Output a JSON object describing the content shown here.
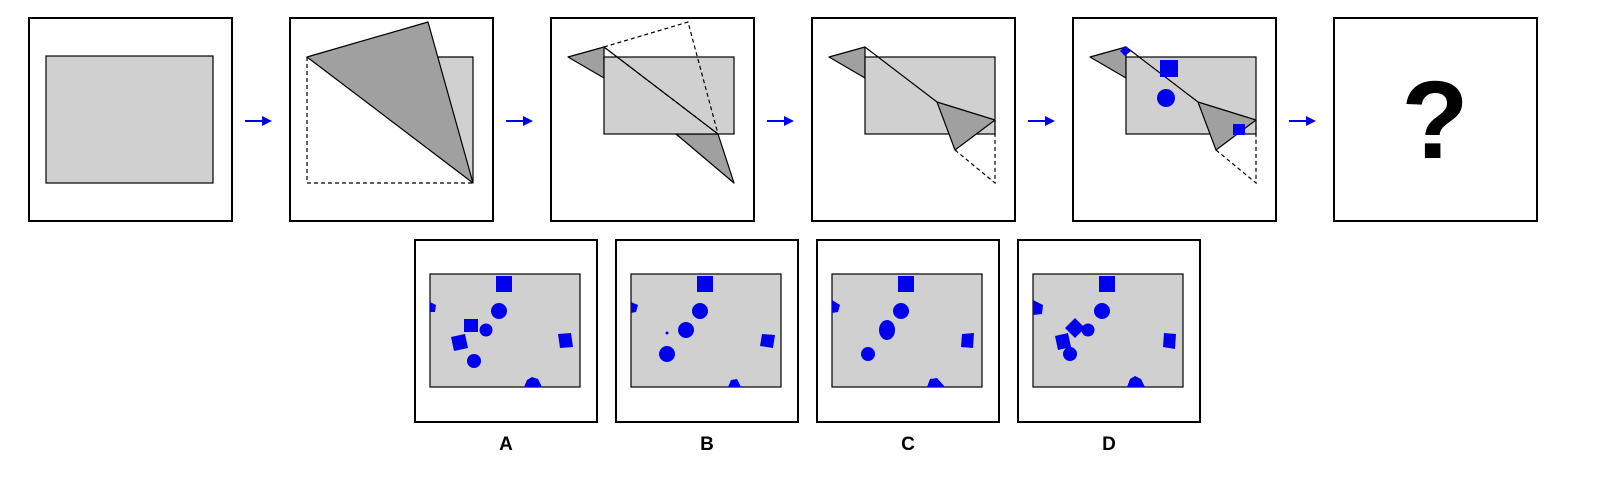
{
  "question_mark": "?",
  "options": [
    {
      "label": "A"
    },
    {
      "label": "B"
    },
    {
      "label": "C"
    },
    {
      "label": "D"
    }
  ],
  "colors": {
    "paper": "#d0d0d0",
    "folded_flap": "#a0a0a0",
    "punch_marks": "#0000ee",
    "arrows": "#0000ee",
    "frame": "#000000"
  },
  "icons": {
    "sequence_arrow": "right-arrow-icon"
  }
}
